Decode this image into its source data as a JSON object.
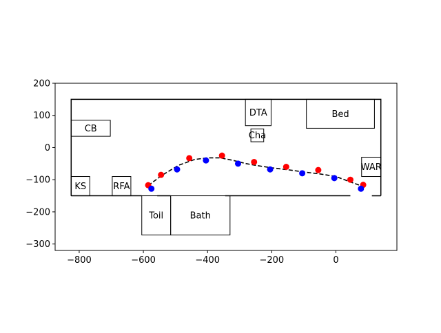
{
  "chart_data": {
    "type": "scatter",
    "xlim": [
      -875,
      190
    ],
    "ylim": [
      -320,
      200
    ],
    "xticks": [
      -800,
      -600,
      -400,
      -200,
      0
    ],
    "yticks": [
      200,
      100,
      0,
      -100,
      -200,
      -300
    ],
    "x_tick_labels": [
      "−800",
      "−600",
      "−400",
      "−200",
      "0"
    ],
    "y_tick_labels": [
      "200",
      "100",
      "0",
      "−100",
      "−200",
      "−300"
    ],
    "grid": false,
    "outline": {
      "x_min": -825,
      "x_max": 140,
      "y_min": -150,
      "y_max": 150,
      "bottom_segments": [
        [
          -825,
          -605
        ],
        [
          -557,
          -515
        ],
        [
          -345,
          45
        ],
        [
          112,
          140
        ]
      ]
    },
    "rooms": [
      {
        "label": "CB",
        "x": -825,
        "y": 35,
        "w": 122,
        "h": 50
      },
      {
        "label": "DTA",
        "x": -282,
        "y": 68,
        "w": 80,
        "h": 82
      },
      {
        "label": "Bed",
        "x": -92,
        "y": 60,
        "w": 212,
        "h": 90
      },
      {
        "label": "Cha",
        "x": -265,
        "y": 18,
        "w": 40,
        "h": 40
      },
      {
        "label": "WAR",
        "x": 80,
        "y": -90,
        "w": 60,
        "h": 60
      },
      {
        "label": "KS",
        "x": -825,
        "y": -150,
        "w": 58,
        "h": 60
      },
      {
        "label": "RFA",
        "x": -697,
        "y": -150,
        "w": 58,
        "h": 60
      },
      {
        "label": "Toil",
        "x": -605,
        "y": -272,
        "w": 90,
        "h": 122
      },
      {
        "label": "Bath",
        "x": -515,
        "y": -272,
        "w": 185,
        "h": 122
      }
    ],
    "series": [
      {
        "color": "#ff0000",
        "points": [
          [
            -585,
            -117
          ],
          [
            -545,
            -85
          ],
          [
            -457,
            -33
          ],
          [
            -355,
            -25
          ],
          [
            -255,
            -45
          ],
          [
            -155,
            -60
          ],
          [
            -55,
            -70
          ],
          [
            45,
            -100
          ],
          [
            85,
            -116
          ]
        ]
      },
      {
        "color": "#0000ff",
        "points": [
          [
            -575,
            -128
          ],
          [
            -495,
            -68
          ],
          [
            -405,
            -40
          ],
          [
            -305,
            -50
          ],
          [
            -205,
            -68
          ],
          [
            -105,
            -80
          ],
          [
            -5,
            -95
          ],
          [
            78,
            -128
          ]
        ]
      }
    ],
    "curve": {
      "style": "dashed",
      "color": "#000000",
      "points": [
        [
          -585,
          -118
        ],
        [
          -540,
          -85
        ],
        [
          -490,
          -55
        ],
        [
          -440,
          -37
        ],
        [
          -400,
          -32
        ],
        [
          -360,
          -32
        ],
        [
          -320,
          -40
        ],
        [
          -280,
          -50
        ],
        [
          -240,
          -57
        ],
        [
          -200,
          -63
        ],
        [
          -150,
          -69
        ],
        [
          -100,
          -76
        ],
        [
          -50,
          -82
        ],
        [
          0,
          -90
        ],
        [
          40,
          -105
        ],
        [
          70,
          -116
        ],
        [
          85,
          -120
        ]
      ]
    }
  }
}
